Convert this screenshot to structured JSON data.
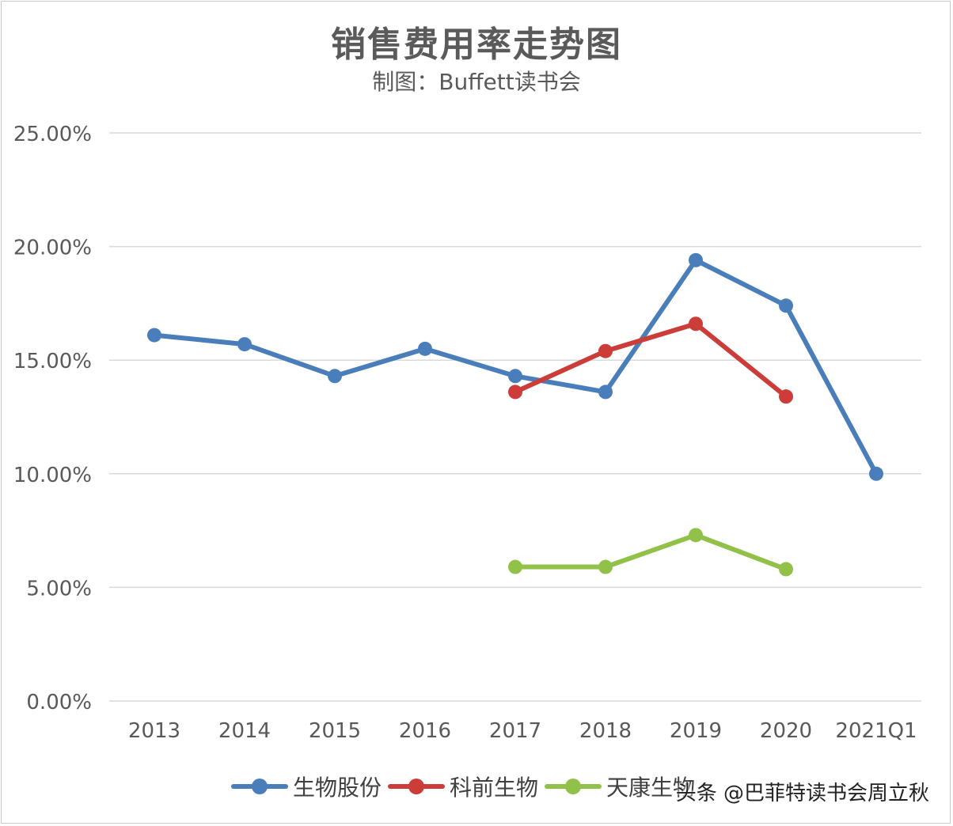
{
  "title": "销售费用率走势图",
  "subtitle": "制图：Buffett读书会",
  "watermark": "头条 @巴菲特读书会周立秋",
  "colors": {
    "grid": "#d9d9d9",
    "axis_text": "#595959"
  },
  "chart_data": {
    "type": "line",
    "title": "销售费用率走势图",
    "subtitle": "制图：Buffett读书会",
    "categories": [
      "2013",
      "2014",
      "2015",
      "2016",
      "2017",
      "2018",
      "2019",
      "2020",
      "2021Q1"
    ],
    "y_ticks": [
      "0.00%",
      "5.00%",
      "10.00%",
      "15.00%",
      "20.00%",
      "25.00%"
    ],
    "ylim": [
      0,
      25
    ],
    "grid": true,
    "legend_position": "bottom",
    "series": [
      {
        "name": "生物股份",
        "color": "#4a7ebb",
        "values": [
          16.1,
          15.7,
          14.3,
          15.5,
          14.3,
          13.6,
          19.4,
          17.4,
          10.0
        ]
      },
      {
        "name": "科前生物",
        "color": "#cc3d3a",
        "values": [
          null,
          null,
          null,
          null,
          13.6,
          15.4,
          16.6,
          13.4,
          null
        ]
      },
      {
        "name": "天康生物",
        "color": "#92c14a",
        "values": [
          null,
          null,
          null,
          null,
          5.9,
          5.9,
          7.3,
          5.8,
          null
        ]
      }
    ]
  }
}
